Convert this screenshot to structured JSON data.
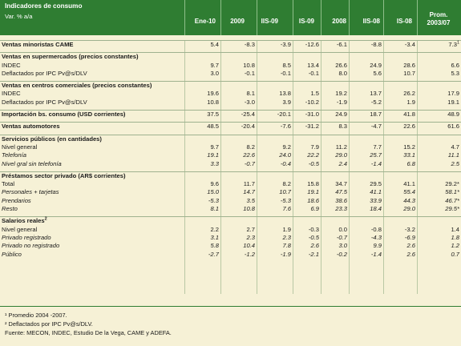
{
  "header": {
    "title": "Indicadores de consumo",
    "subtitle": "Var. % a/a",
    "columns": [
      "Ene-10",
      "2009",
      "IIS-09",
      "IS-09",
      "2008",
      "IIS-08",
      "IS-08"
    ],
    "prom_line1": "Prom.",
    "prom_line2": "2003/07"
  },
  "rows": [
    {
      "label": "Ventas minoristas CAME",
      "style": "bold sect",
      "values": [
        "5.4",
        "-8.3",
        "-3.9",
        "-12.6",
        "-6.1",
        "-8.8",
        "-3.4",
        "7.3"
      ],
      "prom_sup": "1"
    },
    {
      "label": "",
      "style": "gap",
      "values": []
    },
    {
      "label": "Ventas en supermercados",
      "sub": "(precios constantes)",
      "style": "bold sect",
      "values": []
    },
    {
      "label": "INDEC",
      "style": "",
      "values": [
        "9.7",
        "10.8",
        "8.5",
        "13.4",
        "26.6",
        "24.9",
        "28.6",
        "6.6"
      ]
    },
    {
      "label": "Deflactados por IPC Pv@s/DLV",
      "style": "",
      "values": [
        "3.0",
        "-0.1",
        "-0.1",
        "-0.1",
        "8.0",
        "5.6",
        "10.7",
        "5.3"
      ]
    },
    {
      "label": "",
      "style": "gap",
      "values": []
    },
    {
      "label": "Ventas en centros comerciales",
      "sub": "(precios constantes)",
      "style": "bold sect",
      "values": []
    },
    {
      "label": "INDEC",
      "style": "",
      "values": [
        "19.6",
        "8.1",
        "13.8",
        "1.5",
        "19.2",
        "13.7",
        "26.2",
        "17.9"
      ]
    },
    {
      "label": "Deflactados por IPC Pv@s/DLV",
      "style": "",
      "values": [
        "10.8",
        "-3.0",
        "3.9",
        "-10.2",
        "-1.9",
        "-5.2",
        "1.9",
        "19.1"
      ]
    },
    {
      "label": "",
      "style": "gap",
      "values": []
    },
    {
      "label": "Importación bs. consumo",
      "sub": "(USD corrientes)",
      "style": "bold sect",
      "values": [
        "37.5",
        "-25.4",
        "-20.1",
        "-31.0",
        "24.9",
        "18.7",
        "41.8",
        "48.9"
      ]
    },
    {
      "label": "",
      "style": "gap",
      "values": []
    },
    {
      "label": "Ventas automotores",
      "style": "bold sect",
      "values": [
        "48.5",
        "-20.4",
        "-7.6",
        "-31.2",
        "8.3",
        "-4.7",
        "22.6",
        "61.6"
      ]
    },
    {
      "label": "",
      "style": "gap",
      "values": []
    },
    {
      "label": "Servicios públicos",
      "sub": "(en cantidades)",
      "style": "bold sect",
      "values": []
    },
    {
      "label": "Nivel general",
      "style": "",
      "values": [
        "9.7",
        "8.2",
        "9.2",
        "7.9",
        "11.2",
        "7.7",
        "15.2",
        "4.7"
      ]
    },
    {
      "label": "Telefonía",
      "style": "it",
      "values": [
        "19.1",
        "22.6",
        "24.0",
        "22.2",
        "29.0",
        "25.7",
        "33.1",
        "11.1"
      ]
    },
    {
      "label": "Nivel gral sin telefonía",
      "style": "it",
      "values": [
        "3.3",
        "-0.7",
        "-0.4",
        "-0.5",
        "2.4",
        "-1.4",
        "6.8",
        "2.5"
      ]
    },
    {
      "label": "",
      "style": "gap",
      "values": []
    },
    {
      "label": "Préstamos sector privado",
      "sub": "(AR$ corrientes)",
      "style": "bold sect",
      "values": []
    },
    {
      "label": "Total",
      "style": "",
      "values": [
        "9.6",
        "11.7",
        "8.2",
        "15.8",
        "34.7",
        "29.5",
        "41.1",
        "29.2*"
      ]
    },
    {
      "label": "Personales + tarjetas",
      "style": "it",
      "values": [
        "15.0",
        "14.7",
        "10.7",
        "19.1",
        "47.5",
        "41.1",
        "55.4",
        "58.1*"
      ]
    },
    {
      "label": "Prendarios",
      "style": "it",
      "values": [
        "-5.3",
        "3.5",
        "-5.3",
        "18.6",
        "38.6",
        "33.9",
        "44.3",
        "46.7*"
      ]
    },
    {
      "label": "Resto",
      "style": "it",
      "values": [
        "8.1",
        "10.8",
        "7.6",
        "6.9",
        "23.3",
        "18.4",
        "29.0",
        "29.5*"
      ]
    },
    {
      "label": "",
      "style": "gap",
      "values": []
    },
    {
      "label": "Salarios reales",
      "label_sup": "2",
      "style": "bold sect",
      "values": []
    },
    {
      "label": "Nivel general",
      "style": "",
      "values": [
        "2.2",
        "2.7",
        "1.9",
        "-0.3",
        "0.0",
        "-0.8",
        "-3.2",
        "1.4"
      ]
    },
    {
      "label": "Privado registrado",
      "style": "it",
      "values": [
        "3.1",
        "2.3",
        "2.3",
        "-0.5",
        "-0.7",
        "-4.3",
        "-6.9",
        "1.8"
      ]
    },
    {
      "label": "Privado no registrado",
      "style": "it",
      "values": [
        "5.8",
        "10.4",
        "7.8",
        "2.6",
        "3.0",
        "9.9",
        "2.6",
        "1.2"
      ]
    },
    {
      "label": "Público",
      "style": "it",
      "values": [
        "-2.7",
        "-1.2",
        "-1.9",
        "-2.1",
        "-0.2",
        "-1.4",
        "2.6",
        "0.7"
      ]
    }
  ],
  "footnotes": [
    "¹ Promedio 2004 -2007.",
    "² Deflactados por IPC Pv@s/DLV.",
    "Fuente: MECON, INDEC, Estudio De la Vega, CAME y ADEFA."
  ],
  "colors": {
    "header_bg": "#2f7d32",
    "panel_bg": "#f6f1d6"
  }
}
